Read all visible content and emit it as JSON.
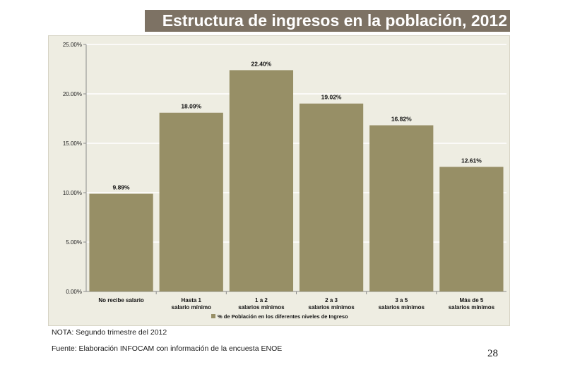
{
  "header": {
    "title": "Estructura de ingresos en la población, 2012"
  },
  "chart_data": {
    "type": "bar",
    "title": "",
    "xlabel": "",
    "ylabel": "",
    "categories": [
      [
        "No recibe salario"
      ],
      [
        "Hasta 1",
        "salario mínimo"
      ],
      [
        "1 a 2",
        "salarios mínimos"
      ],
      [
        "2 a 3",
        "salarios mínimos"
      ],
      [
        "3 a 5",
        "salarios mínimos"
      ],
      [
        "Más de 5",
        "salarios mínimos"
      ]
    ],
    "series": [
      {
        "name": "% de Población en los diferentes niveles de Ingreso",
        "values": [
          9.89,
          18.09,
          22.4,
          19.02,
          16.82,
          12.61
        ],
        "data_labels": [
          "9.89%",
          "18.09%",
          "22.40%",
          "19.02%",
          "16.82%",
          "12.61%"
        ]
      }
    ],
    "ylim": [
      0,
      25
    ],
    "yticks": [
      0,
      5,
      10,
      15,
      20,
      25
    ],
    "ytick_labels": [
      "0.00%",
      "5.00%",
      "10.00%",
      "15.00%",
      "20.00%",
      "25.00%"
    ],
    "grid": true,
    "legend_position": "bottom",
    "colors": {
      "bar": "#978f66",
      "plot_bg": "#eeede2",
      "grid": "#ffffff"
    }
  },
  "notes": {
    "nota": "NOTA: Segundo trimestre del 2012",
    "fuente": "Fuente: Elaboración INFOCAM con información de la encuesta ENOE"
  },
  "page": {
    "number": "28"
  }
}
